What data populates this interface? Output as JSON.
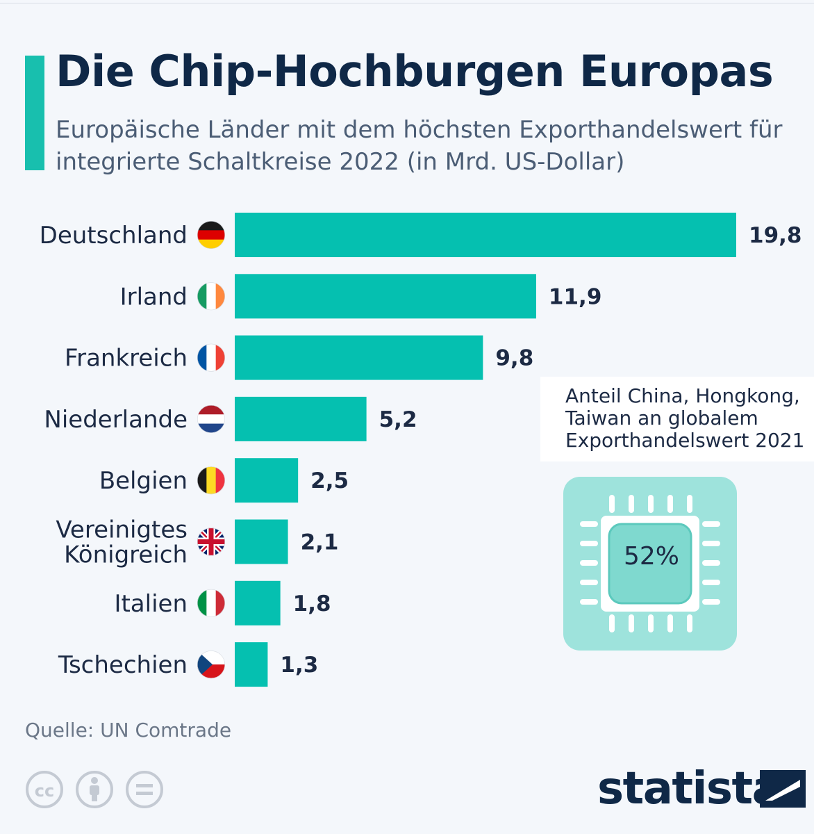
{
  "title": "Die Chip-Hochburgen Europas",
  "subtitle": "Europäische Länder mit dem höchsten Exporthandelswert für integrierte Schaltkreise 2022 (in Mrd. US-Dollar)",
  "colors": {
    "accent": "#18bfae",
    "bar": "#05c0b0",
    "title": "#0f2847",
    "text": "#1c2a44",
    "chip_bg": "#9ee3dc",
    "chip_inner": "#7fd9cf"
  },
  "chart_data": {
    "type": "bar",
    "orientation": "horizontal",
    "categories": [
      "Deutschland",
      "Irland",
      "Frankreich",
      "Niederlande",
      "Belgien",
      "Vereinigtes Königreich",
      "Italien",
      "Tschechien"
    ],
    "category_lines": [
      [
        "Deutschland"
      ],
      [
        "Irland"
      ],
      [
        "Frankreich"
      ],
      [
        "Niederlande"
      ],
      [
        "Belgien"
      ],
      [
        "Vereinigtes",
        "Königreich"
      ],
      [
        "Italien"
      ],
      [
        "Tschechien"
      ]
    ],
    "values": [
      19.8,
      11.9,
      9.8,
      5.2,
      2.5,
      2.1,
      1.8,
      1.3
    ],
    "value_labels": [
      "19,8",
      "11,9",
      "9,8",
      "5,2",
      "2,5",
      "2,1",
      "1,8",
      "1,3"
    ],
    "flags": [
      "de-flag-icon",
      "ie-flag-icon",
      "fr-flag-icon",
      "nl-flag-icon",
      "be-flag-icon",
      "gb-flag-icon",
      "it-flag-icon",
      "cz-flag-icon"
    ],
    "xlim": [
      0,
      19.8
    ],
    "grid": false,
    "legend": "none"
  },
  "callout": {
    "lines": [
      "Anteil China, Hongkong,",
      "Taiwan an globalem",
      "Exporthandelswert 2021"
    ],
    "value": "52%",
    "icon": "microchip-icon"
  },
  "source": "Quelle: UN Comtrade",
  "license_icons": [
    "cc-icon",
    "attribution-icon",
    "noderivatives-icon"
  ],
  "brand": {
    "name": "statista",
    "icon": "statista-logo-icon"
  }
}
